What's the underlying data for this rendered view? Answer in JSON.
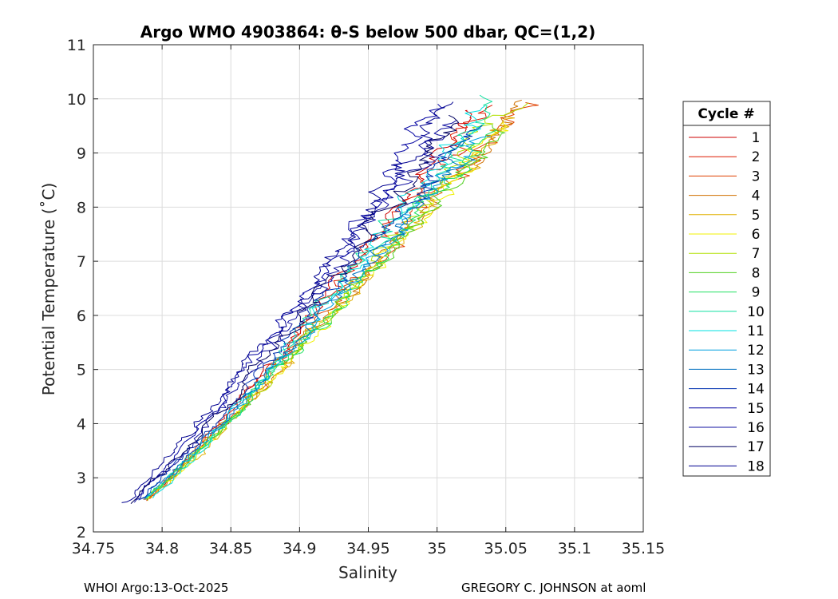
{
  "chart_data": {
    "type": "line",
    "title": "Argo WMO 4903864: θ-S below 500 dbar,  QC=(1,2)",
    "xlabel": "Salinity",
    "ylabel": "Potential Temperature (˚C)",
    "xlim": [
      34.75,
      35.15
    ],
    "ylim": [
      2,
      11
    ],
    "xticks": [
      34.75,
      34.8,
      34.85,
      34.9,
      34.95,
      35,
      35.05,
      35.1,
      35.15
    ],
    "xtick_labels": [
      "34.75",
      "34.8",
      "34.85",
      "34.9",
      "34.95",
      "35",
      "35.05",
      "35.1",
      "35.15"
    ],
    "yticks": [
      2,
      3,
      4,
      5,
      6,
      7,
      8,
      9,
      10,
      11
    ],
    "ytick_labels": [
      "2",
      "3",
      "4",
      "5",
      "6",
      "7",
      "8",
      "9",
      "10",
      "11"
    ],
    "grid": true,
    "legend": {
      "title": "Cycle #",
      "placement": "right-outside"
    },
    "series": [
      {
        "name": "1",
        "color": "#cc0000",
        "theta_top": 9.8,
        "salt_top": 35.028,
        "theta_bottom": 2.62,
        "salt_bottom": 34.79,
        "wiggle": 0.006,
        "seed": 11
      },
      {
        "name": "2",
        "color": "#dd1a00",
        "theta_top": 9.9,
        "salt_top": 35.036,
        "theta_bottom": 2.6,
        "salt_bottom": 34.788,
        "wiggle": 0.007,
        "seed": 12
      },
      {
        "name": "3",
        "color": "#e04000",
        "theta_top": 9.95,
        "salt_top": 35.058,
        "theta_bottom": 2.58,
        "salt_bottom": 34.786,
        "wiggle": 0.009,
        "seed": 13
      },
      {
        "name": "4",
        "color": "#d07000",
        "theta_top": 10.0,
        "salt_top": 35.064,
        "theta_bottom": 2.6,
        "salt_bottom": 34.787,
        "wiggle": 0.008,
        "seed": 14
      },
      {
        "name": "5",
        "color": "#e0b000",
        "theta_top": 9.7,
        "salt_top": 35.055,
        "theta_bottom": 2.62,
        "salt_bottom": 34.789,
        "wiggle": 0.008,
        "seed": 15
      },
      {
        "name": "6",
        "color": "#f0f000",
        "theta_top": 9.6,
        "salt_top": 35.05,
        "theta_bottom": 2.63,
        "salt_bottom": 34.79,
        "wiggle": 0.007,
        "seed": 16
      },
      {
        "name": "7",
        "color": "#b0e000",
        "theta_top": 9.9,
        "salt_top": 35.052,
        "theta_bottom": 2.6,
        "salt_bottom": 34.788,
        "wiggle": 0.008,
        "seed": 17
      },
      {
        "name": "8",
        "color": "#50d020",
        "theta_top": 9.5,
        "salt_top": 35.046,
        "theta_bottom": 2.61,
        "salt_bottom": 34.787,
        "wiggle": 0.007,
        "seed": 18
      },
      {
        "name": "9",
        "color": "#20e060",
        "theta_top": 9.4,
        "salt_top": 35.04,
        "theta_bottom": 2.62,
        "salt_bottom": 34.788,
        "wiggle": 0.007,
        "seed": 19
      },
      {
        "name": "10",
        "color": "#10e0a0",
        "theta_top": 10.05,
        "salt_top": 35.044,
        "theta_bottom": 2.6,
        "salt_bottom": 34.789,
        "wiggle": 0.009,
        "seed": 20
      },
      {
        "name": "11",
        "color": "#00e0e0",
        "theta_top": 9.85,
        "salt_top": 35.034,
        "theta_bottom": 2.64,
        "salt_bottom": 34.794,
        "wiggle": 0.008,
        "seed": 21
      },
      {
        "name": "12",
        "color": "#00a0e0",
        "theta_top": 9.3,
        "salt_top": 35.03,
        "theta_bottom": 2.62,
        "salt_bottom": 34.788,
        "wiggle": 0.007,
        "seed": 22
      },
      {
        "name": "13",
        "color": "#0070c0",
        "theta_top": 9.2,
        "salt_top": 35.026,
        "theta_bottom": 2.6,
        "salt_bottom": 34.784,
        "wiggle": 0.007,
        "seed": 23
      },
      {
        "name": "14",
        "color": "#0030b0",
        "theta_top": 9.5,
        "salt_top": 35.022,
        "theta_bottom": 2.58,
        "salt_bottom": 34.782,
        "wiggle": 0.008,
        "seed": 24
      },
      {
        "name": "15",
        "color": "#0000a0",
        "theta_top": 9.9,
        "salt_top": 35.008,
        "theta_bottom": 2.6,
        "salt_bottom": 34.781,
        "wiggle": 0.009,
        "seed": 25
      },
      {
        "name": "16",
        "color": "#1010a0",
        "theta_top": 9.6,
        "salt_top": 35.01,
        "theta_bottom": 2.56,
        "salt_bottom": 34.78,
        "wiggle": 0.009,
        "seed": 26
      },
      {
        "name": "17",
        "color": "#000060",
        "theta_top": 9.7,
        "salt_top": 35.02,
        "theta_bottom": 2.55,
        "salt_bottom": 34.778,
        "wiggle": 0.008,
        "seed": 27
      },
      {
        "name": "18",
        "color": "#000090",
        "theta_top": 9.95,
        "salt_top": 35.012,
        "theta_bottom": 2.52,
        "salt_bottom": 34.772,
        "wiggle": 0.009,
        "seed": 28
      }
    ]
  },
  "footer": {
    "left": "WHOI Argo:13-Oct-2025",
    "right": "GREGORY C. JOHNSON at aoml"
  }
}
